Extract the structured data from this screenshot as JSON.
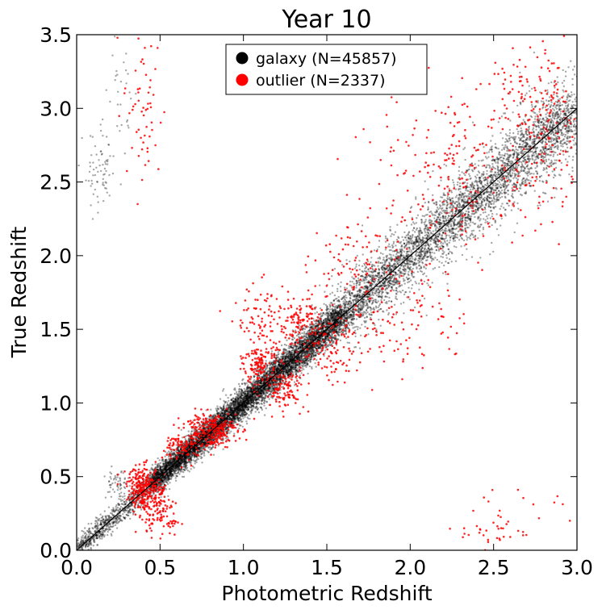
{
  "chart_data": {
    "type": "scatter",
    "title": "Year 10",
    "xlabel": "Photometric Redshift",
    "ylabel": "True Redshift",
    "xlim": [
      0.0,
      3.0
    ],
    "ylim": [
      0.0,
      3.5
    ],
    "xticks": [
      "0.0",
      "0.5",
      "1.0",
      "1.5",
      "2.0",
      "2.5",
      "3.0"
    ],
    "yticks": [
      "0.0",
      "0.5",
      "1.0",
      "1.5",
      "2.0",
      "2.5",
      "3.0",
      "3.5"
    ],
    "grid": false,
    "legend_position": "top-center",
    "reference_line": {
      "x": [
        0.0,
        3.0
      ],
      "y": [
        0.0,
        3.0
      ],
      "color": "#000000"
    },
    "series": [
      {
        "name": "galaxy (N=45857)",
        "color": "#000000",
        "point_count": 45857,
        "clusters": [
          {
            "kind": "diagonal",
            "x_start": 0.0,
            "x_end": 3.0,
            "points": 5200,
            "spread": 0.035
          },
          {
            "kind": "diagonal",
            "x_start": 0.45,
            "x_end": 1.6,
            "points": 5200,
            "spread": 0.03
          },
          {
            "kind": "diagonal",
            "x_start": 1.6,
            "x_end": 3.0,
            "points": 1800,
            "spread": 0.06
          },
          {
            "kind": "blob",
            "x": 0.14,
            "y": 2.55,
            "sx": 0.05,
            "sy": 0.15,
            "points": 70
          },
          {
            "kind": "blob",
            "x": 0.27,
            "y": 3.05,
            "sx": 0.04,
            "sy": 0.25,
            "points": 30
          },
          {
            "kind": "blob",
            "x": 0.24,
            "y": 0.45,
            "sx": 0.04,
            "sy": 0.05,
            "points": 60
          }
        ]
      },
      {
        "name": "outlier (N=2337)",
        "color": "#ff0000",
        "point_count": 2337,
        "clusters": [
          {
            "kind": "blob",
            "x": 0.4,
            "y": 0.43,
            "sx": 0.05,
            "sy": 0.07,
            "points": 230
          },
          {
            "kind": "blob",
            "x": 0.47,
            "y": 0.32,
            "sx": 0.06,
            "sy": 0.08,
            "points": 110
          },
          {
            "kind": "blob",
            "x": 0.8,
            "y": 0.82,
            "sx": 0.08,
            "sy": 0.06,
            "points": 260
          },
          {
            "kind": "blob",
            "x": 0.65,
            "y": 0.7,
            "sx": 0.06,
            "sy": 0.05,
            "points": 90
          },
          {
            "kind": "blob",
            "x": 1.1,
            "y": 1.27,
            "sx": 0.05,
            "sy": 0.08,
            "points": 150
          },
          {
            "kind": "blob",
            "x": 1.1,
            "y": 1.6,
            "sx": 0.1,
            "sy": 0.12,
            "points": 70
          },
          {
            "kind": "blob",
            "x": 1.25,
            "y": 1.1,
            "sx": 0.06,
            "sy": 0.07,
            "points": 110
          },
          {
            "kind": "blob",
            "x": 1.35,
            "y": 1.55,
            "sx": 0.08,
            "sy": 0.08,
            "points": 110
          },
          {
            "kind": "blob",
            "x": 1.5,
            "y": 1.35,
            "sx": 0.1,
            "sy": 0.1,
            "points": 100
          },
          {
            "kind": "blob",
            "x": 1.65,
            "y": 1.95,
            "sx": 0.12,
            "sy": 0.18,
            "points": 90
          },
          {
            "kind": "blob",
            "x": 1.95,
            "y": 1.6,
            "sx": 0.2,
            "sy": 0.2,
            "points": 120
          },
          {
            "kind": "blob",
            "x": 2.3,
            "y": 2.6,
            "sx": 0.25,
            "sy": 0.3,
            "points": 220
          },
          {
            "kind": "blob",
            "x": 2.75,
            "y": 3.05,
            "sx": 0.12,
            "sy": 0.2,
            "points": 110
          },
          {
            "kind": "blob",
            "x": 2.85,
            "y": 2.6,
            "sx": 0.12,
            "sy": 0.25,
            "points": 80
          },
          {
            "kind": "blob",
            "x": 0.4,
            "y": 3.0,
            "sx": 0.06,
            "sy": 0.3,
            "points": 60
          },
          {
            "kind": "blob",
            "x": 0.52,
            "y": 0.2,
            "sx": 0.05,
            "sy": 0.05,
            "points": 40
          },
          {
            "kind": "blob",
            "x": 2.5,
            "y": 0.12,
            "sx": 0.1,
            "sy": 0.05,
            "points": 30
          },
          {
            "kind": "blob",
            "x": 2.7,
            "y": 0.3,
            "sx": 0.2,
            "sy": 0.1,
            "points": 15
          }
        ]
      }
    ]
  }
}
